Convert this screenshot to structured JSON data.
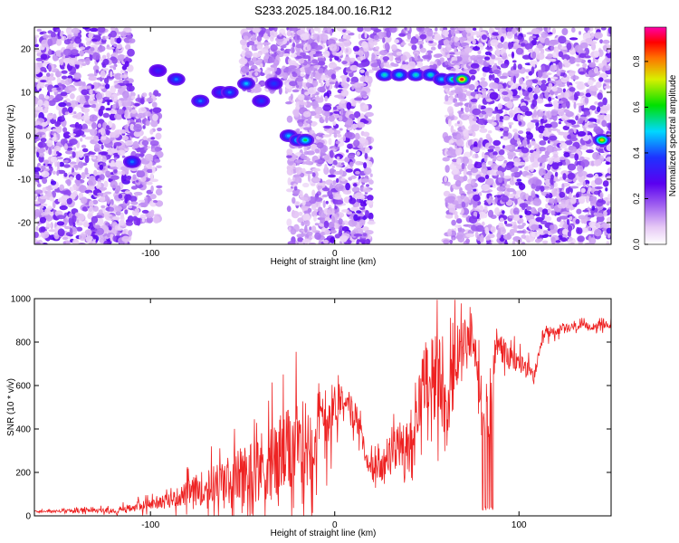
{
  "title": "S233.2025.184.00.16.R12",
  "colors": {
    "snr_line": "#ee2222",
    "frame": "#000000"
  },
  "colorscale": [
    {
      "v": 0.0,
      "c": "#ffffff"
    },
    {
      "v": 0.08,
      "c": "#e6c8f5"
    },
    {
      "v": 0.18,
      "c": "#a060f0"
    },
    {
      "v": 0.28,
      "c": "#5a00f0"
    },
    {
      "v": 0.4,
      "c": "#1e32ff"
    },
    {
      "v": 0.52,
      "c": "#00d8ff"
    },
    {
      "v": 0.64,
      "c": "#00e000"
    },
    {
      "v": 0.76,
      "c": "#d8f000"
    },
    {
      "v": 0.86,
      "c": "#ff7000"
    },
    {
      "v": 0.93,
      "c": "#ff0000"
    },
    {
      "v": 1.0,
      "c": "#ff00aa"
    }
  ],
  "chart_data": [
    {
      "type": "heatmap",
      "xlabel": "Height of straight line (km)",
      "ylabel": "Frequency (Hz)",
      "xlim": [
        -163,
        150
      ],
      "ylim": [
        -25,
        25
      ],
      "xticks": [
        -100,
        0,
        100
      ],
      "yticks": [
        -20,
        -10,
        0,
        10,
        20
      ],
      "colorbar": {
        "label": "Normalized spectral amplitude",
        "range": [
          0,
          0.95
        ],
        "ticks": [
          0.0,
          0.2,
          0.4,
          0.6,
          0.8
        ]
      },
      "noise_bands": [
        {
          "x": [
            -163,
            -110
          ],
          "y": [
            -25,
            25
          ],
          "level": 0.25
        },
        {
          "x": [
            -110,
            -95
          ],
          "y": [
            -20,
            10
          ],
          "level": 0.2
        },
        {
          "x": [
            -50,
            -10
          ],
          "y": [
            10,
            25
          ],
          "level": 0.18
        },
        {
          "x": [
            -25,
            -5
          ],
          "y": [
            -25,
            25
          ],
          "level": 0.15
        },
        {
          "x": [
            -5,
            20
          ],
          "y": [
            -25,
            25
          ],
          "level": 0.25
        },
        {
          "x": [
            20,
            75
          ],
          "y": [
            15,
            25
          ],
          "level": 0.18
        },
        {
          "x": [
            60,
            75
          ],
          "y": [
            -25,
            25
          ],
          "level": 0.12
        },
        {
          "x": [
            75,
            150
          ],
          "y": [
            -25,
            25
          ],
          "level": 0.25
        }
      ],
      "features": [
        {
          "x": -110,
          "y": -6,
          "a": 0.45
        },
        {
          "x": -96,
          "y": 15,
          "a": 0.35
        },
        {
          "x": -86,
          "y": 13,
          "a": 0.45
        },
        {
          "x": -73,
          "y": 8,
          "a": 0.45
        },
        {
          "x": -62,
          "y": 10,
          "a": 0.4
        },
        {
          "x": -57,
          "y": 10,
          "a": 0.45
        },
        {
          "x": -48,
          "y": 12,
          "a": 0.5
        },
        {
          "x": -40,
          "y": 8,
          "a": 0.4
        },
        {
          "x": -33,
          "y": 12,
          "a": 0.4
        },
        {
          "x": -25,
          "y": 0,
          "a": 0.5
        },
        {
          "x": -20,
          "y": -1,
          "a": 0.55
        },
        {
          "x": -16,
          "y": -1,
          "a": 0.6
        },
        {
          "x": 27,
          "y": 14,
          "a": 0.55
        },
        {
          "x": 35,
          "y": 14,
          "a": 0.55
        },
        {
          "x": 44,
          "y": 14,
          "a": 0.55
        },
        {
          "x": 52,
          "y": 14,
          "a": 0.55
        },
        {
          "x": 58,
          "y": 13,
          "a": 0.5
        },
        {
          "x": 64,
          "y": 13,
          "a": 0.6
        },
        {
          "x": 69,
          "y": 13,
          "a": 0.95
        },
        {
          "x": 145,
          "y": -1,
          "a": 0.8
        }
      ]
    },
    {
      "type": "line",
      "xlabel": "Height of straight line (km)",
      "ylabel": "SNR (10 * v/v)",
      "xlim": [
        -163,
        150
      ],
      "ylim": [
        0,
        1000
      ],
      "xticks": [
        -100,
        0,
        100
      ],
      "yticks": [
        0,
        200,
        400,
        600,
        800,
        1000
      ],
      "envelope": [
        {
          "x": -163,
          "mean": 20,
          "amp": 10
        },
        {
          "x": -120,
          "mean": 25,
          "amp": 25
        },
        {
          "x": -90,
          "mean": 70,
          "amp": 70
        },
        {
          "x": -75,
          "mean": 120,
          "amp": 160
        },
        {
          "x": -55,
          "mean": 170,
          "amp": 260
        },
        {
          "x": -35,
          "mean": 250,
          "amp": 400
        },
        {
          "x": -15,
          "mean": 330,
          "amp": 480
        },
        {
          "x": -5,
          "mean": 450,
          "amp": 350
        },
        {
          "x": 5,
          "mean": 560,
          "amp": 120
        },
        {
          "x": 12,
          "mean": 450,
          "amp": 150
        },
        {
          "x": 18,
          "mean": 240,
          "amp": 80
        },
        {
          "x": 25,
          "mean": 220,
          "amp": 140
        },
        {
          "x": 35,
          "mean": 330,
          "amp": 250
        },
        {
          "x": 42,
          "mean": 270,
          "amp": 280
        },
        {
          "x": 48,
          "mean": 650,
          "amp": 380
        },
        {
          "x": 55,
          "mean": 700,
          "amp": 400
        },
        {
          "x": 60,
          "mean": 480,
          "amp": 400
        },
        {
          "x": 68,
          "mean": 780,
          "amp": 300
        },
        {
          "x": 75,
          "mean": 790,
          "amp": 150
        },
        {
          "x": 82,
          "mean": 500,
          "amp": 450
        },
        {
          "x": 88,
          "mean": 800,
          "amp": 180
        },
        {
          "x": 95,
          "mean": 720,
          "amp": 120
        },
        {
          "x": 102,
          "mean": 700,
          "amp": 120
        },
        {
          "x": 108,
          "mean": 640,
          "amp": 60
        },
        {
          "x": 114,
          "mean": 840,
          "amp": 60
        },
        {
          "x": 130,
          "mean": 870,
          "amp": 40
        },
        {
          "x": 150,
          "mean": 880,
          "amp": 40
        }
      ]
    }
  ]
}
